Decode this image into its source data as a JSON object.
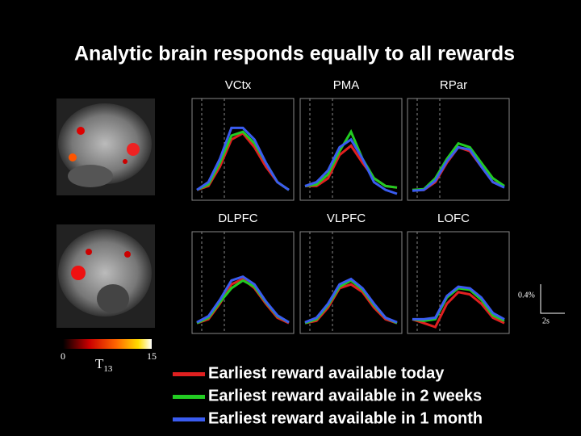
{
  "title": "Analytic brain responds equally to all rewards",
  "legend": [
    {
      "name": "Earliest reward available today",
      "color": "#e02020"
    },
    {
      "name": "Earliest reward available in 2 weeks",
      "color": "#22cc22"
    },
    {
      "name": "Earliest reward available in 1 month",
      "color": "#3a5cf0"
    }
  ],
  "colorbar": {
    "label": "T",
    "label_sub": "13",
    "ticks": [
      0,
      15
    ]
  },
  "scale_bar": {
    "y": "0.4%",
    "x": "2s"
  },
  "chart_data": [
    {
      "type": "line",
      "title": "VCtx",
      "categories": [
        null,
        null,
        null,
        null,
        null,
        null,
        null,
        null,
        null
      ],
      "ylim": [
        0,
        1
      ],
      "series": [
        {
          "values": [
            0.05,
            0.1,
            0.35,
            0.7,
            0.78,
            0.6,
            0.35,
            0.15,
            0.05
          ]
        },
        {
          "values": [
            0.05,
            0.12,
            0.4,
            0.75,
            0.8,
            0.65,
            0.4,
            0.15,
            0.05
          ]
        },
        {
          "values": [
            0.05,
            0.15,
            0.45,
            0.85,
            0.85,
            0.7,
            0.4,
            0.15,
            0.05
          ]
        }
      ]
    },
    {
      "type": "line",
      "title": "PMA",
      "categories": [
        null,
        null,
        null,
        null,
        null,
        null,
        null,
        null,
        null
      ],
      "ylim": [
        0,
        1
      ],
      "series": [
        {
          "values": [
            0.1,
            0.1,
            0.2,
            0.5,
            0.62,
            0.4,
            0.2,
            0.1,
            0.08
          ]
        },
        {
          "values": [
            0.1,
            0.12,
            0.25,
            0.55,
            0.8,
            0.45,
            0.2,
            0.1,
            0.08
          ]
        },
        {
          "values": [
            0.1,
            0.15,
            0.3,
            0.6,
            0.7,
            0.45,
            0.15,
            0.05,
            0.0
          ]
        }
      ]
    },
    {
      "type": "line",
      "title": "RPar",
      "categories": [
        null,
        null,
        null,
        null,
        null,
        null,
        null,
        null,
        null
      ],
      "ylim": [
        0,
        1
      ],
      "series": [
        {
          "values": [
            0.05,
            0.05,
            0.15,
            0.4,
            0.6,
            0.55,
            0.35,
            0.15,
            0.1
          ]
        },
        {
          "values": [
            0.05,
            0.06,
            0.2,
            0.45,
            0.65,
            0.6,
            0.4,
            0.2,
            0.1
          ]
        },
        {
          "values": [
            0.04,
            0.05,
            0.17,
            0.42,
            0.6,
            0.57,
            0.35,
            0.15,
            0.08
          ]
        }
      ]
    },
    {
      "type": "line",
      "title": "DLPFC",
      "categories": [
        null,
        null,
        null,
        null,
        null,
        null,
        null,
        null,
        null
      ],
      "ylim": [
        0,
        1
      ],
      "series": [
        {
          "values": [
            0.05,
            0.1,
            0.3,
            0.55,
            0.62,
            0.5,
            0.3,
            0.12,
            0.05
          ]
        },
        {
          "values": [
            0.05,
            0.12,
            0.32,
            0.5,
            0.6,
            0.52,
            0.32,
            0.14,
            0.06
          ]
        },
        {
          "values": [
            0.06,
            0.14,
            0.35,
            0.6,
            0.65,
            0.55,
            0.33,
            0.15,
            0.06
          ]
        }
      ]
    },
    {
      "type": "line",
      "title": "VLPFC",
      "categories": [
        null,
        null,
        null,
        null,
        null,
        null,
        null,
        null,
        null
      ],
      "ylim": [
        0,
        1
      ],
      "series": [
        {
          "values": [
            0.05,
            0.08,
            0.25,
            0.5,
            0.55,
            0.45,
            0.25,
            0.1,
            0.05
          ]
        },
        {
          "values": [
            0.05,
            0.1,
            0.28,
            0.52,
            0.6,
            0.48,
            0.28,
            0.12,
            0.05
          ]
        },
        {
          "values": [
            0.06,
            0.12,
            0.3,
            0.55,
            0.62,
            0.5,
            0.3,
            0.12,
            0.06
          ]
        }
      ]
    },
    {
      "type": "line",
      "title": "LOFC",
      "categories": [
        null,
        null,
        null,
        null,
        null,
        null,
        null,
        null,
        null
      ],
      "ylim": [
        0,
        1
      ],
      "series": [
        {
          "values": [
            0.1,
            0.05,
            0.0,
            0.3,
            0.45,
            0.42,
            0.3,
            0.12,
            0.05
          ]
        },
        {
          "values": [
            0.1,
            0.08,
            0.1,
            0.38,
            0.5,
            0.48,
            0.35,
            0.15,
            0.08
          ]
        },
        {
          "values": [
            0.1,
            0.1,
            0.12,
            0.4,
            0.52,
            0.5,
            0.38,
            0.18,
            0.1
          ]
        }
      ]
    }
  ]
}
